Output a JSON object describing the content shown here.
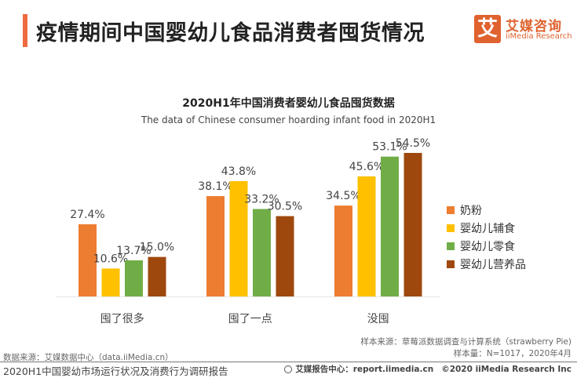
{
  "header": {
    "title": "疫情期间中国婴幼儿食品消费者囤货情况",
    "accent_color": "#ef6a3f",
    "logo": {
      "icon_char": "艾",
      "name_cn": "艾媒咨询",
      "name_en": "iiMedia Research",
      "brand_color": "#e0622f"
    }
  },
  "chart_data": {
    "type": "bar",
    "title": "2020H1年中国消费者婴幼儿食品囤货数据",
    "subtitle": "The data of Chinese consumer hoarding infant food in 2020H1",
    "categories": [
      "囤了很多",
      "囤了一点",
      "没囤"
    ],
    "series": [
      {
        "name": "奶粉",
        "color": "#ed7d31",
        "values": [
          27.4,
          38.1,
          34.5
        ]
      },
      {
        "name": "婴幼儿辅食",
        "color": "#ffc000",
        "values": [
          10.6,
          43.8,
          45.6
        ]
      },
      {
        "name": "婴幼儿零食",
        "color": "#70ad47",
        "values": [
          13.7,
          33.2,
          53.1
        ]
      },
      {
        "name": "婴幼儿营养品",
        "color": "#9e480e",
        "values": [
          15.0,
          30.5,
          54.5
        ]
      }
    ],
    "value_suffix": "%",
    "xlabel": "",
    "ylabel": "",
    "ylim": [
      0,
      60
    ],
    "grid": false,
    "legend_position": "right"
  },
  "notes": {
    "sample_source": "样本来源：草莓派数据调查与计算系统（strawberry Pie)",
    "sample_size": "样本量：N=1017，2020年4月",
    "data_source": "数据来源：艾媒数据中心（data.iiMedia.cn）"
  },
  "footer": {
    "report_name": "2020H1中国婴幼市场运行状况及消费行为调研报告",
    "report_center": "艾媒报告中心：report.iimedia.cn",
    "copyright": "©2020  iiMedia Research  Inc"
  }
}
